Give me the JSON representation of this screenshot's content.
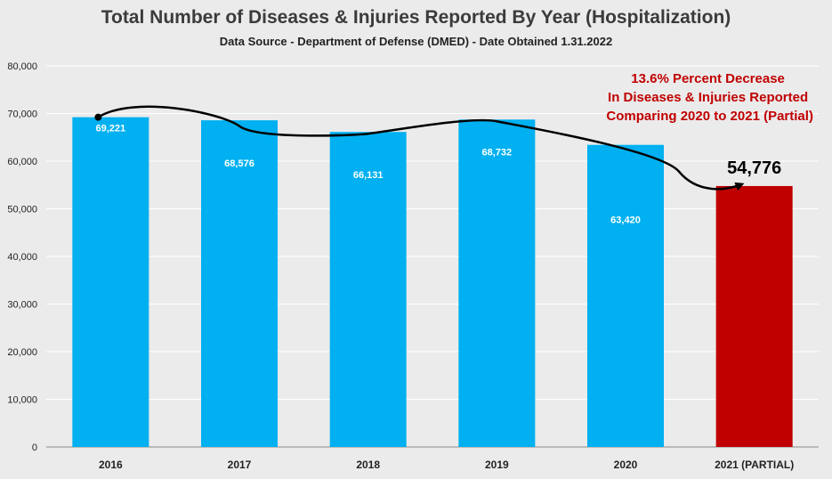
{
  "chart_data": {
    "type": "bar",
    "title": "Total Number of Diseases & Injuries Reported By Year (Hospitalization)",
    "subtitle": "Data Source - Department of Defense (DMED) - Date Obtained 1.31.2022",
    "categories": [
      "2016",
      "2017",
      "2018",
      "2019",
      "2020",
      "2021 (PARTIAL)"
    ],
    "values": [
      69221,
      68576,
      66131,
      68732,
      63420,
      54776
    ],
    "data_labels": [
      "69,221",
      "68,576",
      "66,131",
      "68,732",
      "63,420",
      "54,776"
    ],
    "ylim": [
      0,
      80000
    ],
    "yticks": [
      0,
      10000,
      20000,
      30000,
      40000,
      50000,
      60000,
      70000,
      80000
    ],
    "ytick_labels": [
      "0",
      "10,000",
      "20,000",
      "30,000",
      "40,000",
      "50,000",
      "60,000",
      "70,000",
      "80,000"
    ],
    "grid": true,
    "legend": "none",
    "annotation": [
      "13.6% Percent Decrease",
      "In Diseases & Injuries Reported",
      "Comparing 2020 to 2021 (Partial)"
    ],
    "colors": {
      "bar": "#00b0f0",
      "highlight_bar": "#c00000",
      "annotation": "#c00000",
      "background": "#ebebeb",
      "grid": "#ffffff"
    }
  }
}
